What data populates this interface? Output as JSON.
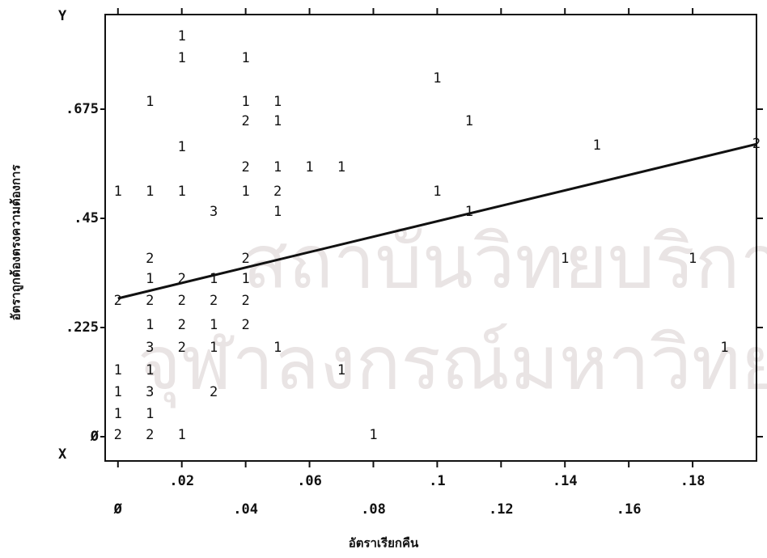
{
  "chart_data": {
    "type": "scatter",
    "x_label": "อัตราเรียกคืน",
    "y_label": "อัตราถูกต้องตรงความต้องการ",
    "x_axis_letter": "X",
    "y_axis_letter": "Y",
    "watermark": [
      "สถาบันวิทยบริการ",
      "จุฬาลงกรณ์มหาวิทยาลัย"
    ],
    "xlim": [
      -0.004,
      0.2
    ],
    "ylim": [
      -0.05,
      0.87
    ],
    "xticks": [
      {
        "value": 0,
        "label": "Ø"
      },
      {
        "value": 0.02,
        "label": ".02"
      },
      {
        "value": 0.04,
        "label": ".04"
      },
      {
        "value": 0.06,
        "label": ".06"
      },
      {
        "value": 0.08,
        "label": ".08"
      },
      {
        "value": 0.1,
        "label": ".1"
      },
      {
        "value": 0.12,
        "label": ".12"
      },
      {
        "value": 0.14,
        "label": ".14"
      },
      {
        "value": 0.16,
        "label": ".16"
      },
      {
        "value": 0.18,
        "label": ".18"
      }
    ],
    "yticks": [
      {
        "value": 0,
        "label": "Ø"
      },
      {
        "value": 0.225,
        "label": ".225"
      },
      {
        "value": 0.45,
        "label": ".45"
      },
      {
        "value": 0.675,
        "label": ".675"
      }
    ],
    "color": "#111111",
    "x": [
      0,
      0,
      0,
      0,
      0,
      0,
      0.01,
      0.01,
      0.01,
      0.01,
      0.01,
      0.01,
      0.01,
      0.01,
      0.01,
      0.01,
      0.01,
      0.02,
      0.02,
      0.02,
      0.02,
      0.02,
      0.02,
      0.02,
      0.02,
      0.02,
      0.03,
      0.03,
      0.03,
      0.03,
      0.03,
      0.03,
      0.04,
      0.04,
      0.04,
      0.04,
      0.04,
      0.04,
      0.04,
      0.04,
      0.04,
      0.05,
      0.05,
      0.05,
      0.05,
      0.05,
      0.05,
      0.06,
      0.07,
      0.07,
      0.08,
      0.1,
      0.1,
      0.11,
      0.11,
      0.14,
      0.15,
      0.18,
      0.19,
      0.2
    ],
    "values": [
      0.505,
      0.28,
      0.137,
      0.092,
      0.047,
      0.003,
      0.69,
      0.505,
      0.367,
      0.325,
      0.28,
      0.23,
      0.183,
      0.137,
      0.092,
      0.047,
      0.003,
      0.825,
      0.78,
      0.597,
      0.505,
      0.325,
      0.28,
      0.23,
      0.183,
      0.003,
      0.463,
      0.325,
      0.28,
      0.23,
      0.183,
      0.092,
      0.78,
      0.69,
      0.65,
      0.555,
      0.505,
      0.367,
      0.325,
      0.28,
      0.23,
      0.69,
      0.65,
      0.555,
      0.505,
      0.463,
      0.183,
      0.555,
      0.555,
      0.137,
      0.003,
      0.738,
      0.505,
      0.65,
      0.463,
      0.367,
      0.6,
      0.367,
      0.183,
      0.603
    ],
    "counts": [
      1,
      2,
      1,
      1,
      1,
      2,
      1,
      1,
      2,
      1,
      2,
      1,
      3,
      1,
      3,
      1,
      2,
      1,
      1,
      1,
      1,
      2,
      2,
      2,
      2,
      1,
      3,
      1,
      2,
      1,
      1,
      2,
      1,
      1,
      2,
      2,
      1,
      2,
      1,
      2,
      2,
      1,
      1,
      1,
      2,
      1,
      1,
      1,
      1,
      1,
      1,
      1,
      1,
      1,
      1,
      1,
      1,
      1,
      1,
      2
    ],
    "regression": {
      "x": [
        0,
        0.2
      ],
      "y": [
        0.285,
        0.603
      ]
    }
  }
}
